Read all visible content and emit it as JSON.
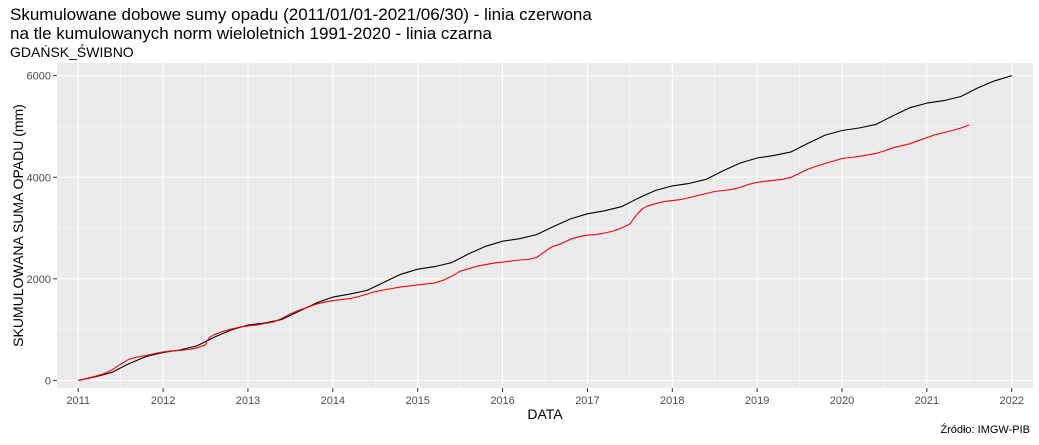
{
  "header": {
    "title_line1": "Skumulowane dobowe sumy opadu (2011/01/01-2021/06/30) - linia czerwona",
    "title_line2": "na tle kumulowanych norm wieloletnich 1991-2020 - linia czarna",
    "subtitle": "GDAŃSK_ŚWIBNO"
  },
  "caption": "Źródło: IMGW-PIB",
  "chart_data": {
    "type": "line",
    "xlabel": "DATA",
    "ylabel": "SKUMULOWANA SUMA OPADU (mm)",
    "xlim": [
      2010.75,
      2022.25
    ],
    "ylim": [
      -150,
      6250
    ],
    "x_ticks": [
      2011,
      2012,
      2013,
      2014,
      2015,
      2016,
      2017,
      2018,
      2019,
      2020,
      2021,
      2022
    ],
    "x_tick_labels": [
      "2011",
      "2012",
      "2013",
      "2014",
      "2015",
      "2016",
      "2017",
      "2018",
      "2019",
      "2020",
      "2021",
      "2022"
    ],
    "y_ticks": [
      0,
      2000,
      4000,
      6000
    ],
    "y_tick_labels": [
      "0",
      "2000",
      "4000",
      "6000"
    ],
    "grid": true,
    "background": "#ebebeb",
    "series": [
      {
        "color": "#000000",
        "x": [
          2011.0,
          2011.2,
          2011.4,
          2011.6,
          2011.8,
          2012.0,
          2012.2,
          2012.4,
          2012.6,
          2012.8,
          2013.0,
          2013.2,
          2013.4,
          2013.6,
          2013.8,
          2014.0,
          2014.2,
          2014.4,
          2014.6,
          2014.8,
          2015.0,
          2015.2,
          2015.4,
          2015.6,
          2015.8,
          2016.0,
          2016.2,
          2016.4,
          2016.6,
          2016.8,
          2017.0,
          2017.2,
          2017.4,
          2017.6,
          2017.8,
          2018.0,
          2018.2,
          2018.4,
          2018.6,
          2018.8,
          2019.0,
          2019.2,
          2019.4,
          2019.6,
          2019.8,
          2020.0,
          2020.2,
          2020.4,
          2020.6,
          2020.8,
          2021.0,
          2021.2,
          2021.4,
          2021.6,
          2021.8,
          2022.0
        ],
        "values": [
          0,
          70,
          160,
          330,
          470,
          550,
          600,
          680,
          850,
          990,
          1090,
          1130,
          1200,
          1360,
          1520,
          1640,
          1700,
          1770,
          1930,
          2090,
          2190,
          2240,
          2320,
          2490,
          2640,
          2740,
          2790,
          2870,
          3030,
          3180,
          3280,
          3340,
          3420,
          3590,
          3740,
          3830,
          3880,
          3960,
          4130,
          4280,
          4380,
          4430,
          4500,
          4670,
          4830,
          4920,
          4970,
          5040,
          5210,
          5370,
          5460,
          5510,
          5590,
          5760,
          5900,
          6000
        ]
      },
      {
        "color": "#ff0000",
        "x": [
          2011.0,
          2011.1,
          2011.2,
          2011.3,
          2011.4,
          2011.5,
          2011.6,
          2011.7,
          2011.8,
          2011.9,
          2012.0,
          2012.1,
          2012.2,
          2012.3,
          2012.4,
          2012.5,
          2012.52,
          2012.55,
          2012.6,
          2012.7,
          2012.8,
          2012.9,
          2013.0,
          2013.1,
          2013.2,
          2013.3,
          2013.4,
          2013.5,
          2013.6,
          2013.7,
          2013.8,
          2013.9,
          2014.0,
          2014.1,
          2014.2,
          2014.3,
          2014.4,
          2014.5,
          2014.6,
          2014.7,
          2014.8,
          2014.9,
          2015.0,
          2015.1,
          2015.2,
          2015.3,
          2015.4,
          2015.5,
          2015.6,
          2015.7,
          2015.8,
          2015.9,
          2016.0,
          2016.1,
          2016.2,
          2016.3,
          2016.4,
          2016.5,
          2016.55,
          2016.6,
          2016.7,
          2016.8,
          2016.9,
          2017.0,
          2017.1,
          2017.2,
          2017.3,
          2017.4,
          2017.5,
          2017.55,
          2017.6,
          2017.65,
          2017.7,
          2017.8,
          2017.9,
          2018.0,
          2018.1,
          2018.2,
          2018.3,
          2018.4,
          2018.5,
          2018.6,
          2018.7,
          2018.8,
          2018.9,
          2019.0,
          2019.1,
          2019.2,
          2019.3,
          2019.4,
          2019.5,
          2019.6,
          2019.7,
          2019.8,
          2019.9,
          2020.0,
          2020.1,
          2020.2,
          2020.3,
          2020.4,
          2020.5,
          2020.6,
          2020.7,
          2020.8,
          2020.9,
          2021.0,
          2021.1,
          2021.2,
          2021.3,
          2021.4,
          2021.5
        ],
        "values": [
          0,
          40,
          80,
          130,
          210,
          320,
          420,
          460,
          490,
          530,
          560,
          580,
          590,
          610,
          640,
          700,
          780,
          850,
          900,
          960,
          1010,
          1050,
          1070,
          1090,
          1120,
          1150,
          1220,
          1310,
          1380,
          1440,
          1500,
          1540,
          1570,
          1590,
          1610,
          1650,
          1700,
          1750,
          1780,
          1810,
          1840,
          1860,
          1880,
          1900,
          1920,
          1970,
          2050,
          2150,
          2200,
          2250,
          2280,
          2310,
          2330,
          2350,
          2370,
          2380,
          2420,
          2540,
          2600,
          2640,
          2700,
          2780,
          2830,
          2860,
          2870,
          2900,
          2940,
          3000,
          3080,
          3200,
          3300,
          3380,
          3430,
          3480,
          3520,
          3540,
          3560,
          3600,
          3640,
          3680,
          3720,
          3740,
          3760,
          3800,
          3860,
          3900,
          3920,
          3940,
          3960,
          4000,
          4080,
          4160,
          4220,
          4270,
          4320,
          4370,
          4390,
          4410,
          4440,
          4470,
          4520,
          4580,
          4620,
          4660,
          4720,
          4780,
          4840,
          4880,
          4920,
          4970,
          5030
        ]
      }
    ]
  }
}
